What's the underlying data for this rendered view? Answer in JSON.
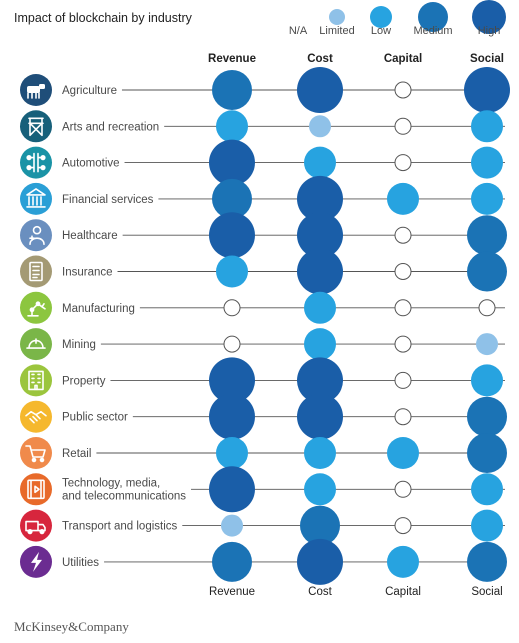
{
  "chart_data": {
    "type": "bubble-matrix",
    "title": "Impact of blockchain by industry",
    "columns": [
      "Revenue",
      "Cost",
      "Capital",
      "Social"
    ],
    "scale": [
      "N/A",
      "Limited",
      "Low",
      "Medium",
      "High"
    ],
    "colors": {
      "N/A": "#ffffff",
      "Limited": "#8fc1e8",
      "Low": "#27a3e0",
      "Medium": "#1b73b5",
      "High": "#1a5ea8",
      "line": "#555555",
      "na_stroke": "#555555"
    },
    "rows": [
      {
        "industry": "Agriculture",
        "values": [
          "Medium",
          "High",
          "N/A",
          "High"
        ],
        "icon": "cow-icon",
        "icon_color": "#1f4e79"
      },
      {
        "industry": "Arts and recreation",
        "values": [
          "Low",
          "Limited",
          "N/A",
          "Low"
        ],
        "icon": "directors-chair-icon",
        "icon_color": "#17607a"
      },
      {
        "industry": "Automotive",
        "values": [
          "High",
          "Low",
          "N/A",
          "Low"
        ],
        "icon": "car-chassis-icon",
        "icon_color": "#1a93a6"
      },
      {
        "industry": "Financial services",
        "values": [
          "Medium",
          "High",
          "Low",
          "Low"
        ],
        "icon": "bank-icon",
        "icon_color": "#2a9fd6"
      },
      {
        "industry": "Healthcare",
        "values": [
          "High",
          "High",
          "N/A",
          "Medium"
        ],
        "icon": "doctor-icon",
        "icon_color": "#6a8fbf"
      },
      {
        "industry": "Insurance",
        "values": [
          "Low",
          "High",
          "N/A",
          "Medium"
        ],
        "icon": "document-icon",
        "icon_color": "#a49a74"
      },
      {
        "industry": "Manufacturing",
        "values": [
          "N/A",
          "Low",
          "N/A",
          "N/A"
        ],
        "icon": "robot-arm-icon",
        "icon_color": "#8cc63f"
      },
      {
        "industry": "Mining",
        "values": [
          "N/A",
          "Low",
          "N/A",
          "Limited"
        ],
        "icon": "hard-hat-icon",
        "icon_color": "#7ab648"
      },
      {
        "industry": "Property",
        "values": [
          "High",
          "High",
          "N/A",
          "Low"
        ],
        "icon": "building-icon",
        "icon_color": "#9bc53d"
      },
      {
        "industry": "Public sector",
        "values": [
          "High",
          "High",
          "N/A",
          "Medium"
        ],
        "icon": "handshake-icon",
        "icon_color": "#f5b82e"
      },
      {
        "industry": "Retail",
        "values": [
          "Low",
          "Low",
          "Low",
          "Medium"
        ],
        "icon": "cart-icon",
        "icon_color": "#f08a4b"
      },
      {
        "industry": "Technology, media, and telecommunications",
        "values": [
          "High",
          "Low",
          "N/A",
          "Low"
        ],
        "icon": "film-icon",
        "icon_color": "#e86a2a",
        "lines": [
          "Technology, media,",
          "and telecommunications"
        ]
      },
      {
        "industry": "Transport and logistics",
        "values": [
          "Limited",
          "Medium",
          "N/A",
          "Low"
        ],
        "icon": "truck-icon",
        "icon_color": "#d7263d"
      },
      {
        "industry": "Utilities",
        "values": [
          "Medium",
          "High",
          "Low",
          "Medium"
        ],
        "icon": "lightning-icon",
        "icon_color": "#6b2c91"
      }
    ]
  },
  "source": "McKinsey&Company"
}
